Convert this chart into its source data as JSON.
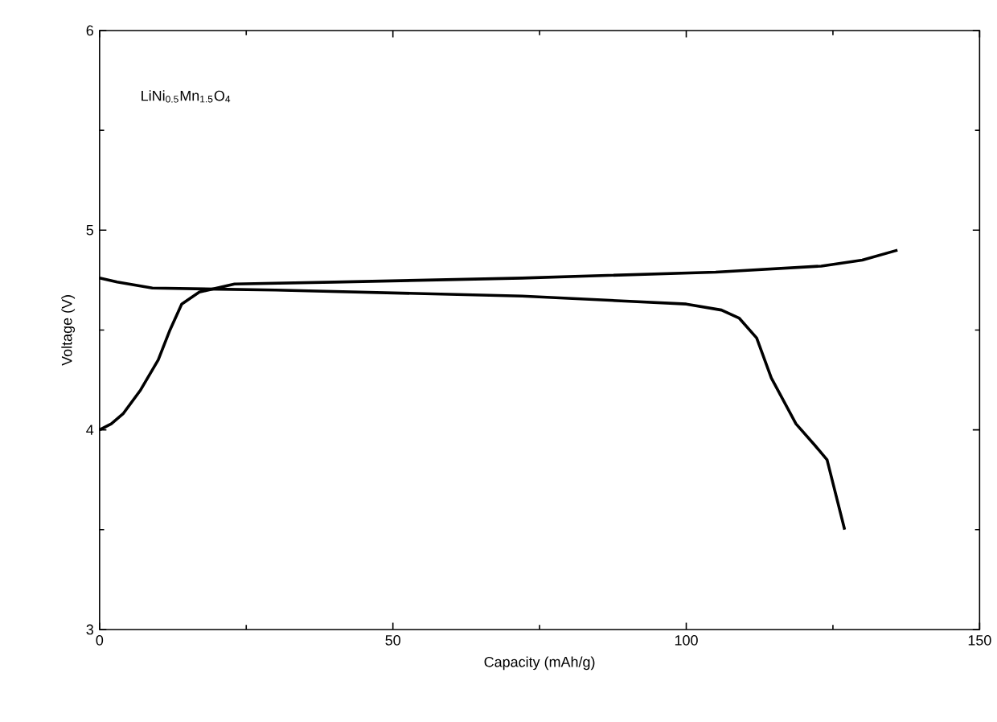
{
  "chart_data": {
    "type": "line",
    "xlabel": "Capacity (mAh/g)",
    "ylabel": "Voltage (V)",
    "annotations": [
      "LiNi$_{0.5}$Mn$_{1.5}$O$_{4}$"
    ],
    "xlim": [
      0,
      150
    ],
    "ylim": [
      3,
      6
    ],
    "xticks": [
      0,
      50,
      100,
      150
    ],
    "yticks": [
      3,
      4,
      5,
      6
    ],
    "grid": false,
    "marker": "none",
    "line_style": "solid",
    "series": [
      {
        "color": "#000000",
        "x": [
          0,
          2,
          4,
          7,
          10,
          12,
          14,
          17,
          23,
          40,
          72,
          105,
          123,
          130,
          136
        ],
        "values": [
          4.0,
          4.03,
          4.08,
          4.2,
          4.35,
          4.5,
          4.63,
          4.69,
          4.73,
          4.74,
          4.76,
          4.79,
          4.82,
          4.85,
          4.9
        ]
      },
      {
        "color": "#000000",
        "x": [
          0,
          3,
          9,
          30,
          72,
          100,
          106,
          109,
          112,
          114.5,
          118.7,
          122,
          124,
          127
        ],
        "values": [
          4.76,
          4.74,
          4.71,
          4.7,
          4.67,
          4.63,
          4.6,
          4.56,
          4.46,
          4.26,
          4.03,
          3.92,
          3.85,
          3.5
        ]
      }
    ]
  }
}
